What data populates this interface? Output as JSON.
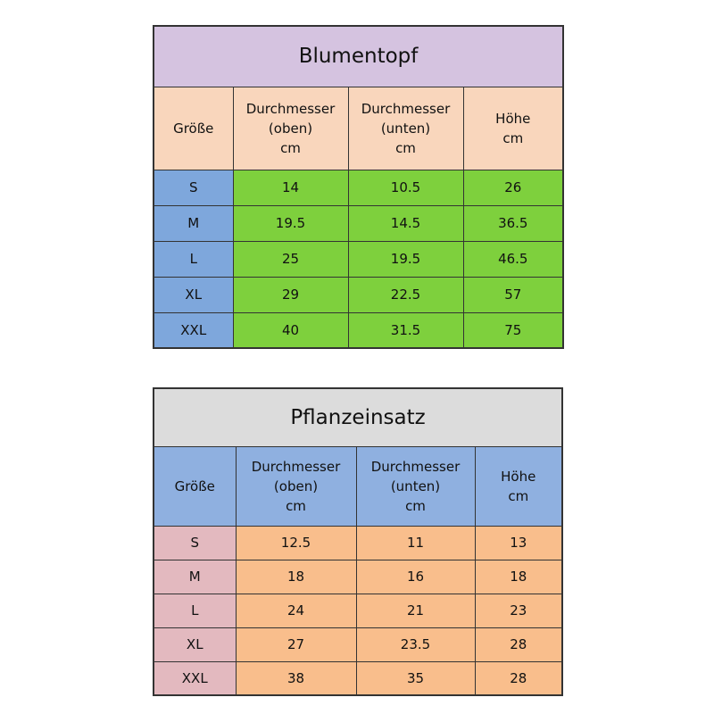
{
  "tables": [
    {
      "title": "Blumentopf",
      "header": [
        [
          "Größe"
        ],
        [
          "Durchmesser",
          "(oben)",
          "cm"
        ],
        [
          "Durchmesser",
          "(unten)",
          "cm"
        ],
        [
          "Höhe",
          "cm"
        ]
      ],
      "rows": [
        [
          "S",
          14,
          10.5,
          26
        ],
        [
          "M",
          19.5,
          14.5,
          36.5
        ],
        [
          "L",
          25,
          19.5,
          46.5
        ],
        [
          "XL",
          29,
          22.5,
          57
        ],
        [
          "XXL",
          40,
          31.5,
          75
        ]
      ]
    },
    {
      "title": "Pflanzeinsatz",
      "header": [
        [
          "Größe"
        ],
        [
          "Durchmesser",
          "(oben)",
          "cm"
        ],
        [
          "Durchmesser",
          "(unten)",
          "cm"
        ],
        [
          "Höhe",
          "cm"
        ]
      ],
      "rows": [
        [
          "S",
          12.5,
          11,
          13
        ],
        [
          "M",
          18,
          16,
          18
        ],
        [
          "L",
          24,
          21,
          23
        ],
        [
          "XL",
          27,
          23.5,
          28
        ],
        [
          "XXL",
          38,
          35,
          28
        ]
      ]
    }
  ]
}
